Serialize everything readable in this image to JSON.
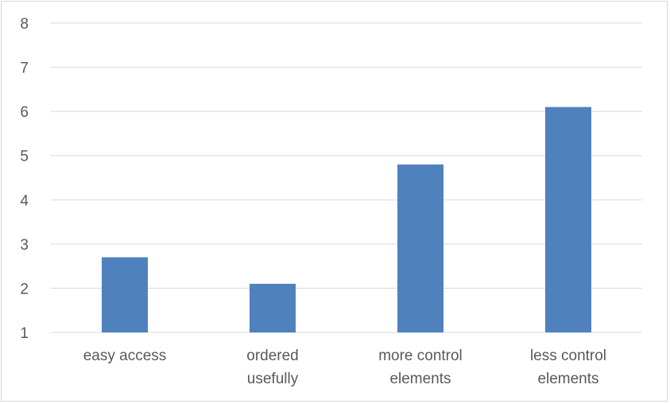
{
  "chart_data": {
    "type": "bar",
    "categories": [
      [
        "easy access"
      ],
      [
        "ordered",
        "usefully"
      ],
      [
        "more control",
        "elements"
      ],
      [
        "less control",
        "elements"
      ]
    ],
    "values": [
      2.7,
      2.1,
      4.8,
      6.1
    ],
    "yticks": [
      "1",
      "2",
      "3",
      "4",
      "5",
      "6",
      "7",
      "8"
    ],
    "ylim": [
      1,
      8
    ],
    "grid": true,
    "legend": "none",
    "title": "",
    "xlabel": "",
    "ylabel": "",
    "colors": {
      "bar": "#4f81bd",
      "grid": "#d9d9d9",
      "text": "#595959"
    }
  }
}
